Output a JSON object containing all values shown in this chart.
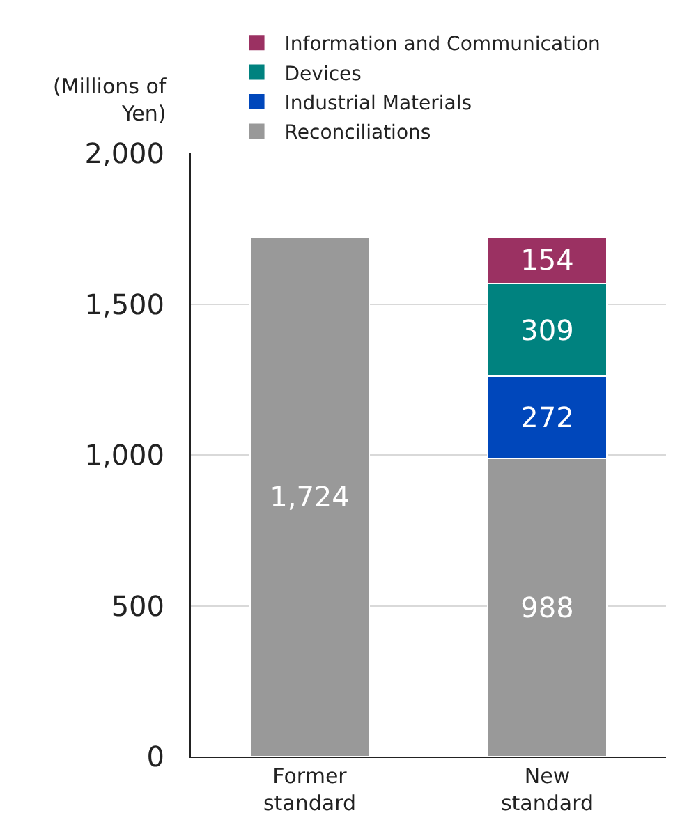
{
  "chart_data": {
    "type": "bar",
    "stacked": true,
    "ylabel": "(Millions of Yen)",
    "categories": [
      "Former standard",
      "New standard"
    ],
    "series": [
      {
        "name": "Reconciliations",
        "color": "#999999",
        "values": [
          1724,
          988
        ],
        "value_labels": [
          "1,724",
          "988"
        ]
      },
      {
        "name": "Industrial Materials",
        "color": "#0047bb",
        "values": [
          null,
          272
        ]
      },
      {
        "name": "Devices",
        "color": "#00827f",
        "values": [
          null,
          309
        ]
      },
      {
        "name": "Information and Communication",
        "color": "#9b3162",
        "values": [
          null,
          154
        ]
      }
    ],
    "ylim": [
      0,
      2000
    ],
    "yticks": [
      {
        "value": 0,
        "label": "0"
      },
      {
        "value": 500,
        "label": "500"
      },
      {
        "value": 1000,
        "label": "1,000"
      },
      {
        "value": 1500,
        "label": "1,500"
      },
      {
        "value": 2000,
        "label": "2,000"
      }
    ],
    "grid": "y",
    "legend": "top",
    "data_labels": true
  }
}
